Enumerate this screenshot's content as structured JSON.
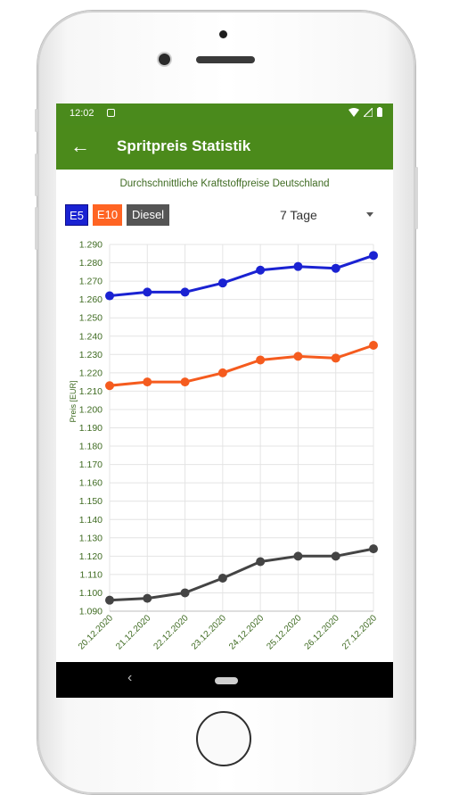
{
  "status_bar": {
    "time": "12:02"
  },
  "app_bar": {
    "title": "Spritpreis Statistik",
    "back_icon": "←"
  },
  "subtitle": "Durchschnittliche Kraftstoffpreise Deutschland",
  "fuel_chips": [
    {
      "label": "E5",
      "color": "#1a22d2"
    },
    {
      "label": "E10",
      "color": "#ff6423"
    },
    {
      "label": "Diesel",
      "color": "#555555"
    }
  ],
  "period_dropdown": {
    "selected": "7 Tage"
  },
  "nav_bar": {
    "back_icon": "‹"
  },
  "chart_data": {
    "type": "line",
    "ylabel": "Preis [EUR]",
    "ylim": [
      1.09,
      1.29
    ],
    "yticks": [
      "1.290",
      "1.280",
      "1.270",
      "1.260",
      "1.250",
      "1.240",
      "1.230",
      "1.220",
      "1.210",
      "1.200",
      "1.190",
      "1.180",
      "1.170",
      "1.160",
      "1.150",
      "1.140",
      "1.130",
      "1.120",
      "1.110",
      "1.100",
      "1.090"
    ],
    "categories": [
      "20.12.2020",
      "21.12.2020",
      "22.12.2020",
      "23.12.2020",
      "24.12.2020",
      "25.12.2020",
      "26.12.2020",
      "27.12.2020"
    ],
    "grid": true,
    "series": [
      {
        "name": "E5",
        "color": "#1a22d2",
        "values": [
          1.262,
          1.264,
          1.264,
          1.269,
          1.276,
          1.278,
          1.277,
          1.284
        ]
      },
      {
        "name": "E10",
        "color": "#f55b1e",
        "values": [
          1.213,
          1.215,
          1.215,
          1.22,
          1.227,
          1.229,
          1.228,
          1.235
        ]
      },
      {
        "name": "Diesel",
        "color": "#444444",
        "values": [
          1.096,
          1.097,
          1.1,
          1.108,
          1.117,
          1.12,
          1.12,
          1.124
        ]
      }
    ]
  }
}
